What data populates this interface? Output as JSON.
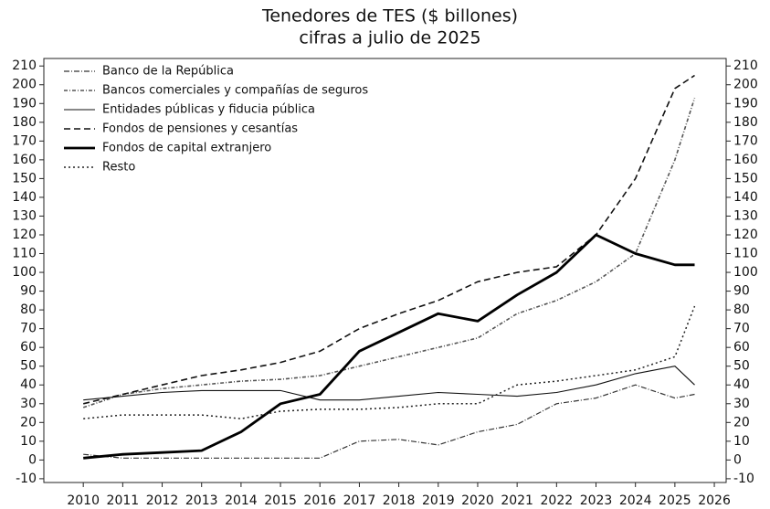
{
  "chart_data": {
    "type": "line",
    "title": "Tenedores de TES ($ billones)",
    "subtitle": "cifras a julio de 2025",
    "x": [
      2010,
      2011,
      2012,
      2013,
      2014,
      2015,
      2016,
      2017,
      2018,
      2019,
      2020,
      2021,
      2022,
      2023,
      2024,
      2025,
      2025.5
    ],
    "xlim": [
      2009,
      2026.3
    ],
    "xticks": [
      2010,
      2011,
      2012,
      2013,
      2014,
      2015,
      2016,
      2017,
      2018,
      2019,
      2020,
      2021,
      2022,
      2023,
      2024,
      2025,
      2026
    ],
    "ylim": [
      -12,
      214
    ],
    "yticks": [
      -10,
      0,
      10,
      20,
      30,
      40,
      50,
      60,
      70,
      80,
      90,
      100,
      110,
      120,
      130,
      140,
      150,
      160,
      170,
      180,
      190,
      200,
      210
    ],
    "y2lim": [
      -12,
      214
    ],
    "y2ticks": [
      -10,
      0,
      10,
      20,
      30,
      40,
      50,
      60,
      70,
      80,
      90,
      100,
      110,
      120,
      130,
      140,
      150,
      160,
      170,
      180,
      190,
      200,
      210
    ],
    "legend": "upper left",
    "series": [
      {
        "name": "Banco de la República",
        "color": "#333333",
        "dash": "6 2 1 2",
        "width": 1.2,
        "values": [
          3,
          1,
          1,
          1,
          1,
          1,
          1,
          10,
          11,
          8,
          15,
          19,
          30,
          33,
          40,
          33,
          35
        ]
      },
      {
        "name": "Bancos comerciales y compañías de seguros",
        "color": "#555555",
        "dash": "4 2 1 2",
        "width": 1.6,
        "values": [
          28,
          35,
          38,
          40,
          42,
          43,
          45,
          50,
          55,
          60,
          65,
          78,
          85,
          95,
          110,
          160,
          193
        ]
      },
      {
        "name": "Entidades públicas y fiducia pública",
        "color": "#111111",
        "dash": "",
        "width": 1.1,
        "values": [
          32,
          34,
          36,
          37,
          37,
          37,
          32,
          32,
          34,
          36,
          35,
          34,
          36,
          40,
          46,
          50,
          40
        ]
      },
      {
        "name": "Fondos de pensiones y cesantías",
        "color": "#111111",
        "dash": "7 4",
        "width": 1.6,
        "values": [
          30,
          35,
          40,
          45,
          48,
          52,
          58,
          70,
          78,
          85,
          95,
          100,
          103,
          120,
          150,
          198,
          205
        ]
      },
      {
        "name": "Fondos de capital extranjero",
        "color": "#000000",
        "dash": "",
        "width": 2.8,
        "values": [
          1,
          3,
          4,
          5,
          15,
          30,
          35,
          58,
          68,
          78,
          74,
          88,
          100,
          120,
          110,
          104,
          104
        ]
      },
      {
        "name": "Resto",
        "color": "#222222",
        "dash": "2 3",
        "width": 1.5,
        "values": [
          22,
          24,
          24,
          24,
          22,
          26,
          27,
          27,
          28,
          30,
          30,
          40,
          42,
          45,
          48,
          55,
          82
        ]
      }
    ]
  }
}
